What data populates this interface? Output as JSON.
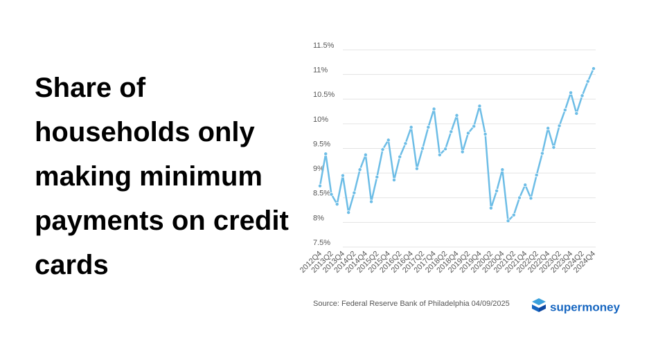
{
  "chart_data": {
    "type": "line",
    "title": "Share of households only making minimum payments on credit cards",
    "categories": [
      "2012Q4",
      null,
      "2013Q2",
      null,
      "2013Q4",
      null,
      "2014Q2",
      null,
      "2014Q4",
      null,
      "2015Q2",
      null,
      "2015Q4",
      null,
      "2016Q2",
      null,
      "2016Q4",
      null,
      "2017Q2",
      null,
      "2017Q4",
      null,
      "2018Q2",
      null,
      "2018Q4",
      null,
      "2019Q2",
      null,
      "2019Q4",
      null,
      "2020Q2",
      null,
      "2020Q4",
      null,
      "2021Q2",
      null,
      "2021Q4",
      null,
      "2022Q2",
      null,
      "2022Q4",
      null,
      "2023Q2",
      null,
      "2023Q4",
      null,
      "2024Q2",
      null,
      "2024Q4"
    ],
    "values": [
      8.74,
      9.39,
      8.57,
      8.37,
      8.95,
      8.2,
      8.6,
      9.07,
      9.37,
      8.42,
      8.92,
      9.48,
      9.67,
      8.86,
      9.33,
      9.6,
      9.93,
      9.09,
      9.5,
      9.93,
      10.3,
      9.37,
      9.49,
      9.84,
      10.17,
      9.43,
      9.81,
      9.95,
      10.36,
      9.79,
      8.29,
      8.64,
      9.07,
      8.03,
      8.15,
      8.5,
      8.76,
      8.49,
      8.96,
      9.4,
      9.91,
      9.52,
      9.96,
      10.28,
      10.63,
      10.21,
      10.57,
      10.86,
      11.12
    ],
    "color": "#6dbde6",
    "ylim": [
      7.5,
      11.5
    ],
    "yticks": [
      {
        "value": 7.5,
        "label": "7.5%"
      },
      {
        "value": 8,
        "label": "8%"
      },
      {
        "value": 8.5,
        "label": "8.5%"
      },
      {
        "value": 9,
        "label": "9%"
      },
      {
        "value": 9.5,
        "label": "9.5%"
      },
      {
        "value": 10,
        "label": "10%"
      },
      {
        "value": 10.5,
        "label": "10.5%"
      },
      {
        "value": 11,
        "label": "11%"
      },
      {
        "value": 11.5,
        "label": "11.5%"
      }
    ],
    "grid": true,
    "source": "Source: Federal Reserve Bank of Philadelphia 04/09/2025",
    "brand": "supermoney"
  }
}
